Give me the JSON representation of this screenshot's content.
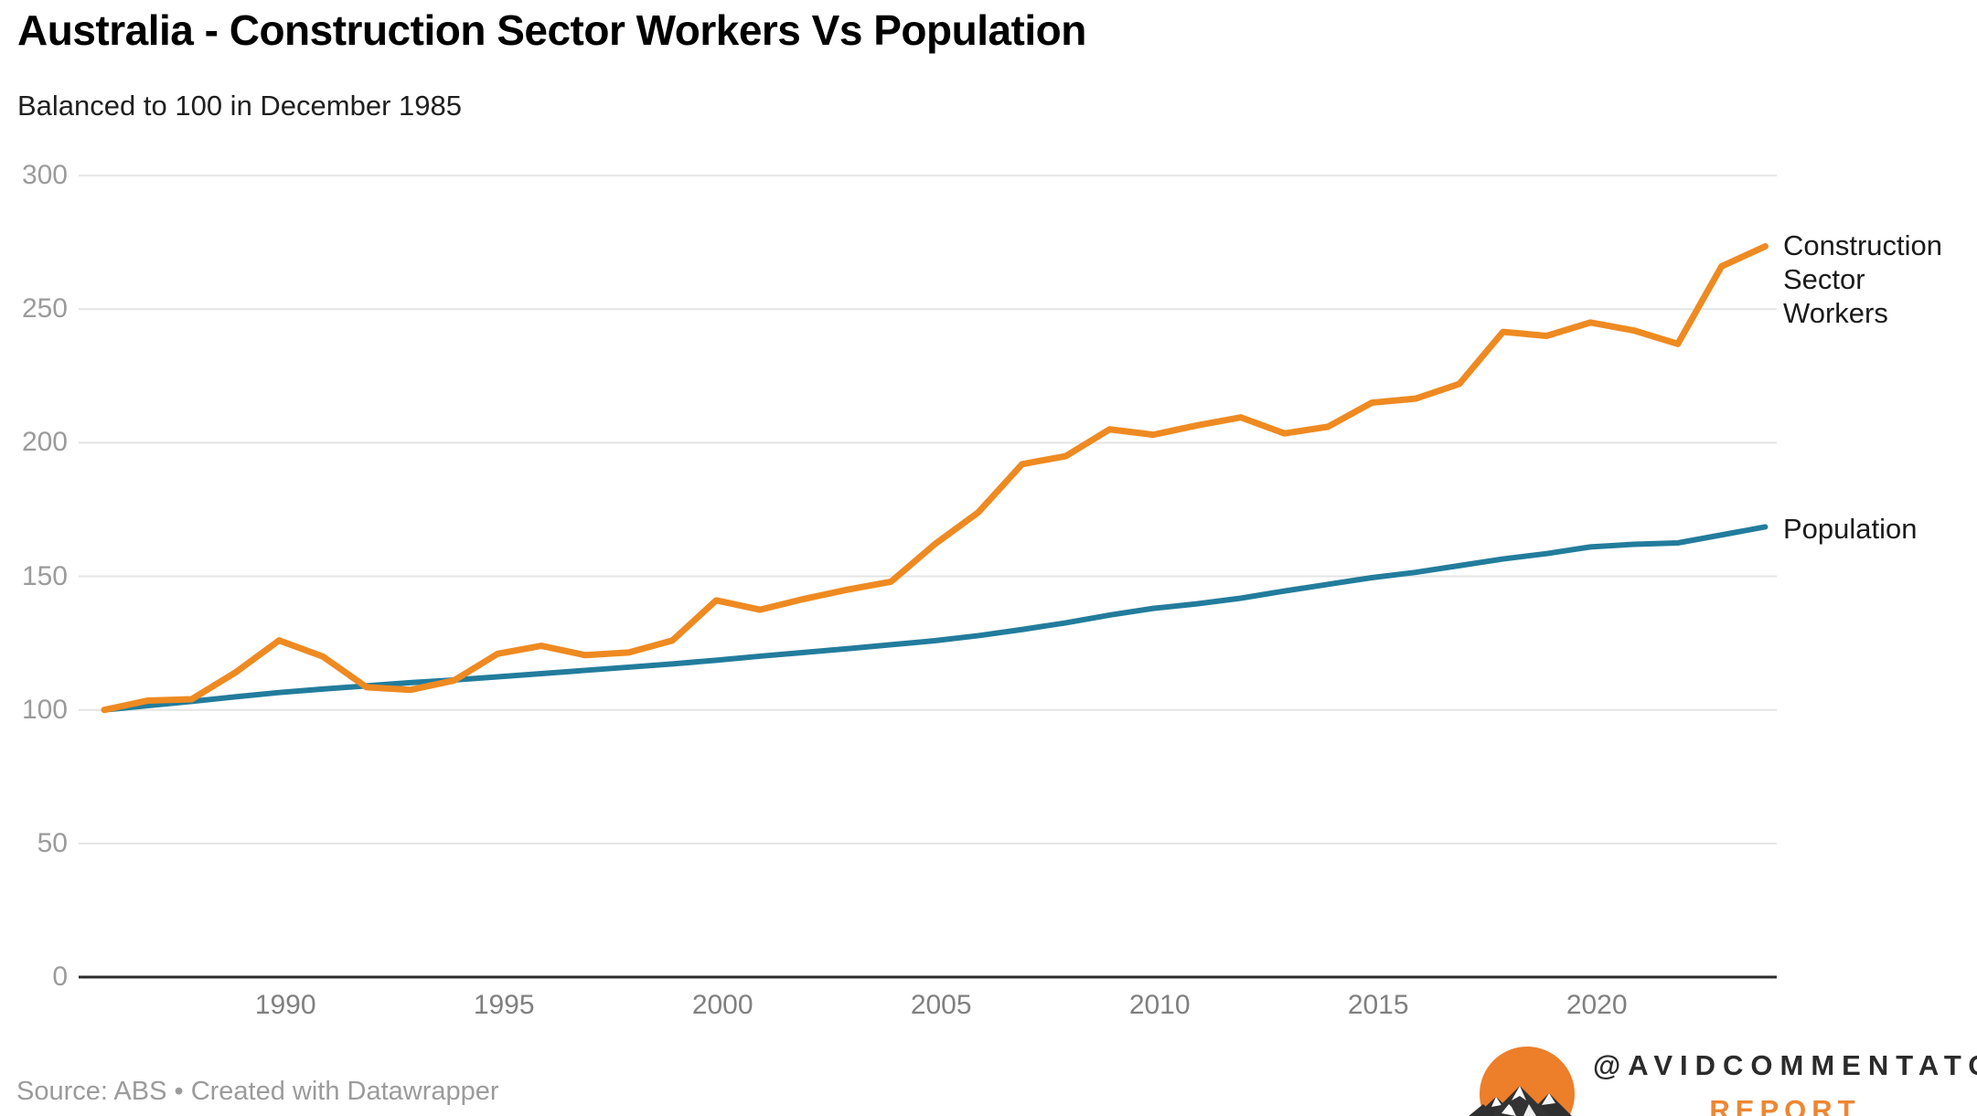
{
  "header": {
    "title": "Australia - Construction Sector Workers Vs Population",
    "subtitle": "Balanced to 100 in December 1985"
  },
  "chart_data": {
    "type": "line",
    "title": "Australia - Construction Sector Workers Vs Population",
    "subtitle": "Balanced to 100 in December 1985",
    "x_label": "",
    "y_label": "",
    "x_years": [
      1985,
      1986,
      1987,
      1988,
      1989,
      1990,
      1991,
      1992,
      1993,
      1994,
      1995,
      1996,
      1997,
      1998,
      1999,
      2000,
      2001,
      2002,
      2003,
      2004,
      2005,
      2006,
      2007,
      2008,
      2009,
      2010,
      2011,
      2012,
      2013,
      2014,
      2015,
      2016,
      2017,
      2018,
      2019,
      2020,
      2021,
      2022,
      2023
    ],
    "series": [
      {
        "name": "Construction Sector Workers",
        "color": "#EE8A21",
        "values": [
          100,
          103.5,
          104,
          114,
          126,
          120,
          108.5,
          107.5,
          111,
          121,
          124,
          120.5,
          121.5,
          126,
          141,
          137.5,
          141.5,
          145,
          148,
          162,
          174,
          192,
          195,
          205,
          203,
          206.5,
          209.5,
          203.5,
          206,
          215,
          216.5,
          222,
          241.5,
          240,
          245,
          242,
          237,
          266,
          273.5
        ]
      },
      {
        "name": "Population",
        "color": "#227C9C",
        "values": [
          100,
          101.6,
          103.2,
          104.9,
          106.5,
          107.8,
          109,
          110.2,
          111.2,
          112.4,
          113.6,
          114.8,
          116,
          117.2,
          118.6,
          120.1,
          121.5,
          122.9,
          124.4,
          125.9,
          127.8,
          130.1,
          132.6,
          135.5,
          138,
          139.7,
          141.8,
          144.5,
          147,
          149.5,
          151.5,
          154,
          156.5,
          158.5,
          161,
          162,
          162.5,
          165.5,
          168.5
        ]
      }
    ],
    "ylim": [
      0,
      300
    ],
    "yticks": [
      0,
      50,
      100,
      150,
      200,
      250,
      300
    ],
    "xticks": [
      1990,
      1995,
      2000,
      2005,
      2010,
      2015,
      2020
    ],
    "grid": "horizontal",
    "gridline_color": "#e4e4e4",
    "axis_color": "#2b2b2b",
    "legend_position": "right of line ends"
  },
  "footer": {
    "source": "Source: ABS • Created with Datawrapper"
  },
  "branding": {
    "handle": "@AVIDCOMMENTATOR",
    "word": "Report",
    "logo": "mountain-sun-logo",
    "accent_color": "#ED8733"
  }
}
